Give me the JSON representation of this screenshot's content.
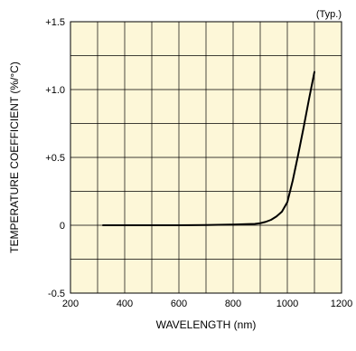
{
  "chart_data": {
    "type": "line",
    "title": "",
    "note": "(Typ.)",
    "xlabel": "WAVELENGTH (nm)",
    "ylabel": "TEMPERATURE COEFFICIENT (%/°C)",
    "xlim": [
      200,
      1200
    ],
    "ylim": [
      -0.5,
      1.5
    ],
    "x_ticks": [
      200,
      300,
      400,
      500,
      600,
      700,
      800,
      900,
      1000,
      1100,
      1200
    ],
    "x_tick_labels": [
      "200",
      "",
      "400",
      "",
      "600",
      "",
      "800",
      "",
      "1000",
      "",
      "1200"
    ],
    "y_ticks": [
      -0.5,
      0,
      0.5,
      1.0,
      1.5
    ],
    "y_tick_labels": [
      "-0.5",
      "0",
      "+0.5",
      "+1.0",
      "+1.5"
    ],
    "grid": true,
    "colors": {
      "plot_background": "#fdf7d8",
      "grid": "#000000",
      "line": "#000000"
    },
    "series": [
      {
        "x": [
          320,
          400,
          500,
          600,
          700,
          800,
          850,
          880,
          900,
          920,
          940,
          960,
          980,
          1000,
          1020,
          1040,
          1060,
          1080,
          1100
        ],
        "y": [
          0.0,
          0.0,
          0.0,
          0.0,
          0.002,
          0.005,
          0.008,
          0.01,
          0.015,
          0.025,
          0.04,
          0.065,
          0.1,
          0.17,
          0.33,
          0.52,
          0.72,
          0.93,
          1.13
        ]
      }
    ]
  }
}
